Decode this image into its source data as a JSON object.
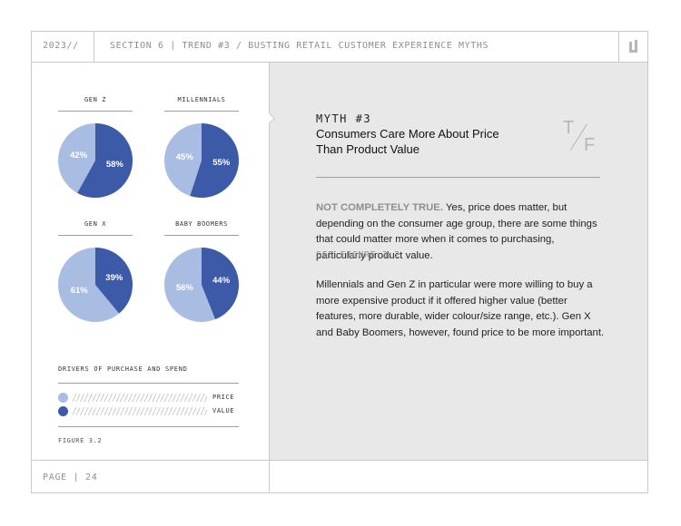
{
  "header": {
    "year": "2023//",
    "breadcrumb": "SECTION 6 | TREND #3 / BUSTING RETAIL CUSTOMER EXPERIENCE MYTHS",
    "logo_icon": "brand-logo-icon"
  },
  "colors": {
    "light_blue": "#a9bde3",
    "dark_blue": "#3c5aa8",
    "panel_grey": "#e7e8e7",
    "rule_grey": "#c7c9cc"
  },
  "chart_data": [
    {
      "type": "pie",
      "title": "GEN Z",
      "labels": [
        "PRICE",
        "VALUE"
      ],
      "values": [
        42,
        58
      ],
      "value_labels": [
        "42%",
        "58%"
      ]
    },
    {
      "type": "pie",
      "title": "MILLENNIALS",
      "labels": [
        "PRICE",
        "VALUE"
      ],
      "values": [
        45,
        55
      ],
      "value_labels": [
        "45%",
        "55%"
      ]
    },
    {
      "type": "pie",
      "title": "GEN X",
      "labels": [
        "PRICE",
        "VALUE"
      ],
      "values": [
        61,
        39
      ],
      "value_labels": [
        "61%",
        "39%"
      ]
    },
    {
      "type": "pie",
      "title": "BABY BOOMERS",
      "labels": [
        "PRICE",
        "VALUE"
      ],
      "values": [
        56,
        44
      ],
      "value_labels": [
        "56%",
        "44%"
      ]
    }
  ],
  "legend": {
    "title": "DRIVERS OF PURCHASE AND SPEND",
    "items": [
      {
        "label": "PRICE",
        "color": "#a9bde3"
      },
      {
        "label": "VALUE",
        "color": "#3c5aa8"
      }
    ]
  },
  "figure_label": "FIGURE 3.2",
  "myth": {
    "number": "MYTH #3",
    "title": "Consumers Care More About Price Than Product Value",
    "tf_t": "T",
    "tf_f": "F",
    "verdict": "NOT COMPLETELY TRUE.",
    "paragraph1": " Yes, price does matter, but depending on the consumer age group, there are some things that could matter more when it comes to purchasing, particularly product value.",
    "see_figure": "SEE FIGURE 3.2",
    "paragraph2": "Millennials and Gen Z in particular were more willing to buy a more expensive product if it offered higher value (better features, more durable, wider colour/size range, etc.). Gen X and Baby Boomers, however, found price to be more important."
  },
  "footer": {
    "page": "PAGE | 24"
  }
}
